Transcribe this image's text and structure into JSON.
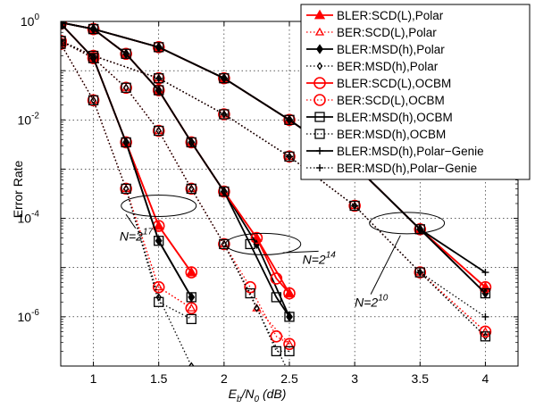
{
  "chart_data": {
    "type": "line",
    "xlabel": {
      "main": "E",
      "sub1": "b",
      "mid": "/N",
      "sub2": "0",
      "unit": " (dB)"
    },
    "ylabel": "Error Rate",
    "x_scale": "linear",
    "y_scale": "log",
    "xlim": [
      0.75,
      4.25
    ],
    "ylim": [
      1e-07,
      1
    ],
    "grid": true,
    "legend_position": "top-right",
    "x_ticks": [
      "1",
      "1.5",
      "2",
      "2.5",
      "3",
      "3.5",
      "4"
    ],
    "x_tick_values": [
      1,
      1.5,
      2,
      2.5,
      3,
      3.5,
      4
    ],
    "y_ticks": [
      {
        "value": 1,
        "base": "10",
        "exp": "0"
      },
      {
        "value": 0.01,
        "base": "10",
        "exp": "-2"
      },
      {
        "value": 0.0001,
        "base": "10",
        "exp": "-4"
      },
      {
        "value": 1e-06,
        "base": "10",
        "exp": "-6"
      }
    ],
    "annotations": [
      {
        "text": "N=2",
        "exp": "17",
        "cx": 1.5,
        "cy": 0.00018,
        "label_x": 1.2,
        "label_y": 3.5e-05,
        "arrow_to_x": 1.25,
        "arrow_to_y": 0.00012
      },
      {
        "text": "N=2",
        "exp": "14",
        "cx": 2.3,
        "cy": 3e-05,
        "label_x": 2.6,
        "label_y": 1.2e-05,
        "arrow_to_x": 2.45,
        "arrow_to_y": 2e-05
      },
      {
        "text": "N=2",
        "exp": "10",
        "cx": 3.4,
        "cy": 8e-05,
        "label_x": 3.0,
        "label_y": 1.6e-06,
        "arrow_to_x": 3.35,
        "arrow_to_y": 4.5e-05
      }
    ],
    "series": [
      {
        "name": "BLER:SCD(L),Polar",
        "color": "#ff0000",
        "marker": "triangle",
        "filled": true,
        "line": "solid",
        "groups": [
          {
            "x": [
              0.75,
              1,
              1.25,
              1.5,
              1.75
            ],
            "y": [
              0.9,
              0.18,
              0.0035,
              7e-05,
              8e-06
            ]
          },
          {
            "x": [
              0.75,
              1,
              1.25,
              1.5,
              1.75,
              2,
              2.25,
              2.5
            ],
            "y": [
              0.95,
              0.7,
              0.22,
              0.04,
              0.0035,
              0.00035,
              4e-05,
              3e-06
            ]
          },
          {
            "x": [
              0.75,
              1,
              1.5,
              2,
              2.5,
              3,
              3.5,
              4
            ],
            "y": [
              0.95,
              0.7,
              0.3,
              0.07,
              0.01,
              0.0012,
              6e-05,
              4e-06
            ]
          }
        ]
      },
      {
        "name": "BER:SCD(L),Polar",
        "color": "#ff0000",
        "marker": "triangle",
        "filled": false,
        "line": "dotted",
        "groups": [
          {
            "x": [
              0.75,
              1,
              1.25,
              1.5,
              1.75
            ],
            "y": [
              0.35,
              0.025,
              0.0004,
              4e-06,
              1.5e-06
            ]
          },
          {
            "x": [
              0.75,
              1,
              1.25,
              1.5,
              1.75,
              2,
              2.25,
              2.5
            ],
            "y": [
              0.4,
              0.18,
              0.045,
              0.006,
              0.0004,
              3e-05,
              1.5e-06,
              2.8e-07
            ]
          },
          {
            "x": [
              0.75,
              1,
              1.5,
              2,
              2.5,
              3,
              3.5,
              4
            ],
            "y": [
              0.4,
              0.2,
              0.07,
              0.013,
              0.0018,
              0.00018,
              8e-06,
              5e-07
            ]
          }
        ]
      },
      {
        "name": "BLER:MSD(h),Polar",
        "color": "#000000",
        "marker": "diamond",
        "filled": true,
        "line": "solid",
        "groups": [
          {
            "x": [
              0.75,
              1,
              1.25,
              1.5,
              1.75
            ],
            "y": [
              0.9,
              0.18,
              0.0035,
              3.5e-05,
              2.5e-06
            ]
          },
          {
            "x": [
              0.75,
              1,
              1.25,
              1.5,
              1.75,
              2,
              2.25,
              2.5
            ],
            "y": [
              0.95,
              0.7,
              0.22,
              0.04,
              0.0035,
              0.00035,
              3e-05,
              1e-06
            ]
          },
          {
            "x": [
              0.75,
              1,
              1.5,
              2,
              2.5,
              3,
              3.5,
              4
            ],
            "y": [
              0.95,
              0.7,
              0.3,
              0.07,
              0.01,
              0.0012,
              6e-05,
              3e-06
            ]
          }
        ]
      },
      {
        "name": "BER:MSD(h),Polar",
        "color": "#000000",
        "marker": "diamond",
        "filled": false,
        "line": "dotted",
        "groups": [
          {
            "x": [
              0.75,
              1,
              1.25,
              1.5,
              1.75
            ],
            "y": [
              0.35,
              0.025,
              0.0004,
              2.5e-06,
              1e-07
            ]
          },
          {
            "x": [
              0.75,
              1,
              1.25,
              1.5,
              1.75,
              2,
              2.25,
              2.5
            ],
            "y": [
              0.4,
              0.18,
              0.045,
              0.006,
              0.0004,
              3e-05,
              1.5e-06,
              7e-08
            ]
          },
          {
            "x": [
              0.75,
              1,
              1.5,
              2,
              2.5,
              3,
              3.5,
              4
            ],
            "y": [
              0.4,
              0.2,
              0.07,
              0.013,
              0.0018,
              0.00018,
              8e-06,
              4e-07
            ]
          }
        ]
      },
      {
        "name": "BLER:SCD(L),OCBM",
        "color": "#ff0000",
        "marker": "circle",
        "filled": false,
        "line": "solid",
        "groups": [
          {
            "x": [
              0.75,
              1,
              1.25,
              1.5,
              1.75
            ],
            "y": [
              0.9,
              0.18,
              0.0035,
              7e-05,
              8e-06
            ]
          },
          {
            "x": [
              0.75,
              1,
              1.25,
              1.5,
              1.75,
              2,
              2.25,
              2.4,
              2.5
            ],
            "y": [
              0.95,
              0.7,
              0.22,
              0.04,
              0.0035,
              0.00035,
              4e-05,
              6e-06,
              3e-06
            ]
          },
          {
            "x": [
              0.75,
              1,
              1.5,
              2,
              2.5,
              3,
              3.5,
              4
            ],
            "y": [
              0.95,
              0.7,
              0.3,
              0.07,
              0.01,
              0.0012,
              6e-05,
              4e-06
            ]
          }
        ]
      },
      {
        "name": "BER:SCD(L),OCBM",
        "color": "#ff0000",
        "marker": "circle",
        "filled": false,
        "line": "dotted",
        "groups": [
          {
            "x": [
              0.75,
              1,
              1.25,
              1.5,
              1.75
            ],
            "y": [
              0.35,
              0.025,
              0.0004,
              4e-06,
              1.5e-06
            ]
          },
          {
            "x": [
              0.75,
              1,
              1.25,
              1.5,
              1.75,
              2,
              2.2,
              2.4,
              2.5
            ],
            "y": [
              0.4,
              0.18,
              0.045,
              0.006,
              0.0004,
              3e-05,
              4e-06,
              4e-07,
              2.8e-07
            ]
          },
          {
            "x": [
              0.75,
              1,
              1.5,
              2,
              2.5,
              3,
              3.5,
              4
            ],
            "y": [
              0.4,
              0.2,
              0.07,
              0.013,
              0.0018,
              0.00018,
              8e-06,
              5e-07
            ]
          }
        ]
      },
      {
        "name": "BLER:MSD(h),OCBM",
        "color": "#000000",
        "marker": "square",
        "filled": false,
        "line": "solid",
        "groups": [
          {
            "x": [
              0.75,
              1,
              1.25,
              1.5,
              1.75
            ],
            "y": [
              0.9,
              0.18,
              0.0035,
              3.5e-05,
              2.5e-06
            ]
          },
          {
            "x": [
              0.75,
              1,
              1.25,
              1.5,
              1.75,
              2,
              2.2,
              2.4,
              2.5
            ],
            "y": [
              0.95,
              0.7,
              0.22,
              0.04,
              0.0035,
              0.00035,
              3e-05,
              2.5e-06,
              1e-06
            ]
          },
          {
            "x": [
              0.75,
              1,
              1.5,
              2,
              2.5,
              3,
              3.5,
              4
            ],
            "y": [
              0.95,
              0.7,
              0.3,
              0.07,
              0.01,
              0.0012,
              6e-05,
              3e-06
            ]
          }
        ]
      },
      {
        "name": "BER:MSD(h),OCBM",
        "color": "#000000",
        "marker": "square",
        "filled": false,
        "line": "dotted",
        "groups": [
          {
            "x": [
              0.75,
              1,
              1.25,
              1.5,
              1.75
            ],
            "y": [
              0.35,
              0.025,
              0.0004,
              2e-06,
              9e-07
            ]
          },
          {
            "x": [
              0.75,
              1,
              1.25,
              1.5,
              1.75,
              2,
              2.2,
              2.4,
              2.5
            ],
            "y": [
              0.4,
              0.18,
              0.045,
              0.006,
              0.0004,
              3e-05,
              3e-06,
              2e-07,
              2e-07
            ]
          },
          {
            "x": [
              0.75,
              1,
              1.5,
              2,
              2.5,
              3,
              3.5,
              4
            ],
            "y": [
              0.4,
              0.2,
              0.07,
              0.013,
              0.0018,
              0.00018,
              8e-06,
              4e-07
            ]
          }
        ]
      },
      {
        "name": "BLER:MSD(h),Polar−Genie",
        "color": "#000000",
        "marker": "plus",
        "filled": false,
        "line": "solid",
        "groups": [
          {
            "x": [
              0.75,
              1,
              1.5,
              2,
              2.5,
              3,
              3.5,
              4
            ],
            "y": [
              0.95,
              0.7,
              0.3,
              0.07,
              0.01,
              0.0012,
              6e-05,
              8e-06
            ]
          }
        ]
      },
      {
        "name": "BER:MSD(h),Polar−Genie",
        "color": "#000000",
        "marker": "plus",
        "filled": false,
        "line": "dotted",
        "groups": [
          {
            "x": [
              0.75,
              1,
              1.5,
              2,
              2.5,
              3,
              3.5,
              4
            ],
            "y": [
              0.4,
              0.2,
              0.07,
              0.013,
              0.0018,
              0.00018,
              8e-06,
              1e-06
            ]
          }
        ]
      }
    ]
  }
}
